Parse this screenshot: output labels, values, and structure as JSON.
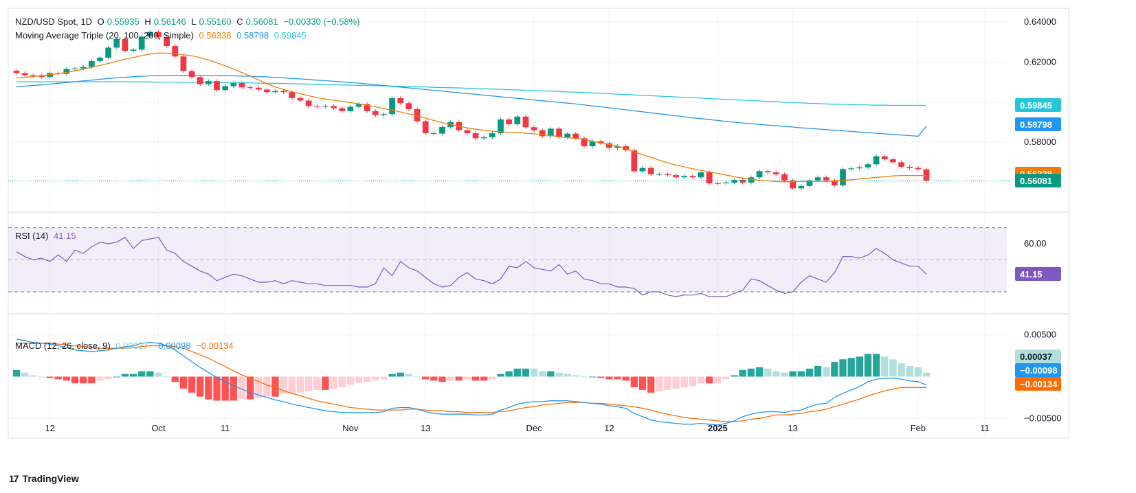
{
  "header": {
    "symbol": "NZD/USD Spot, 1D",
    "open_label": "O",
    "open": "0.55935",
    "high_label": "H",
    "high": "0.56146",
    "low_label": "L",
    "low": "0.55160",
    "close_label": "C",
    "close": "0.56081",
    "change": "−0.00330 (−0.58%)"
  },
  "ma_legend": {
    "label": "Moving Average Triple (20, 100, 200, Simple)",
    "ma20": "0.56338",
    "ma100": "0.58798",
    "ma200": "0.59845"
  },
  "rsi_legend": {
    "label": "RSI (14)",
    "value": "41.15"
  },
  "macd_legend": {
    "label": "MACD (12, 26, close, 9)",
    "hist": "0.00037",
    "macd": "−0.00098",
    "signal": "−0.00134"
  },
  "brand": {
    "name": "TradingView"
  },
  "colors": {
    "up": "#089981",
    "down": "#f23645",
    "ma20": "#f57c00",
    "ma100": "#2196f3",
    "ma200": "#26c6da",
    "rsi": "#7e57c2",
    "macd": "#2196f3",
    "signal": "#ff6d00",
    "hist_up_strong": "#26a69a",
    "hist_up_weak": "#b2dfdb",
    "hist_dn_strong": "#ff5252",
    "hist_dn_weak": "#ffcdd2"
  },
  "chart_data": {
    "type": "candlestick",
    "title": "NZD/USD Spot, 1D",
    "price_axis": {
      "ylim": [
        0.5465,
        0.6465
      ],
      "ticks": [
        0.64,
        0.62,
        0.58
      ],
      "tick_labels": [
        "0.64000",
        "0.62000",
        "0.58000"
      ]
    },
    "rsi_axis": {
      "ylim": [
        18,
        78
      ],
      "ticks": [
        60
      ],
      "tick_labels": [
        "60.00"
      ],
      "band": [
        30,
        70
      ],
      "midline": 50
    },
    "macd_axis": {
      "ylim": [
        -0.0072,
        0.0072
      ],
      "ticks": [
        0.005,
        -0.005
      ],
      "tick_labels": [
        "0.00500",
        "−0.00500"
      ]
    },
    "x_ticks": [
      {
        "label": "12",
        "index": 4,
        "bold": false
      },
      {
        "label": "Oct",
        "index": 17,
        "bold": false
      },
      {
        "label": "11",
        "index": 25,
        "bold": false
      },
      {
        "label": "Nov",
        "index": 40,
        "bold": false
      },
      {
        "label": "13",
        "index": 49,
        "bold": false
      },
      {
        "label": "Dec",
        "index": 62,
        "bold": false
      },
      {
        "label": "12",
        "index": 71,
        "bold": false
      },
      {
        "label": "2025",
        "index": 84,
        "bold": true
      },
      {
        "label": "13",
        "index": 93,
        "bold": false
      },
      {
        "label": "Feb",
        "index": 108,
        "bold": false
      },
      {
        "label": "11",
        "index": 116,
        "bold": false
      }
    ],
    "closes": [
      0.6145,
      0.6135,
      0.6131,
      0.6126,
      0.6145,
      0.6141,
      0.6166,
      0.6168,
      0.6176,
      0.6205,
      0.6222,
      0.6272,
      0.6315,
      0.6256,
      0.6262,
      0.6327,
      0.635,
      0.6325,
      0.628,
      0.6228,
      0.6155,
      0.6125,
      0.609,
      0.6105,
      0.606,
      0.608,
      0.6095,
      0.6074,
      0.6072,
      0.6063,
      0.605,
      0.6056,
      0.605,
      0.602,
      0.6008,
      0.598,
      0.5977,
      0.598,
      0.597,
      0.5955,
      0.5977,
      0.599,
      0.5955,
      0.5935,
      0.594,
      0.602,
      0.5995,
      0.5965,
      0.5905,
      0.5845,
      0.5843,
      0.5876,
      0.59,
      0.586,
      0.5845,
      0.582,
      0.5825,
      0.5845,
      0.5914,
      0.589,
      0.5928,
      0.5875,
      0.586,
      0.583,
      0.5868,
      0.5825,
      0.5843,
      0.582,
      0.578,
      0.5805,
      0.5795,
      0.5772,
      0.578,
      0.576,
      0.5655,
      0.5672,
      0.5641,
      0.5641,
      0.5636,
      0.5625,
      0.5632,
      0.5625,
      0.565,
      0.5595,
      0.5595,
      0.5599,
      0.5612,
      0.5599,
      0.5625,
      0.5656,
      0.565,
      0.564,
      0.561,
      0.557,
      0.5582,
      0.561,
      0.5625,
      0.561,
      0.5585,
      0.5666,
      0.567,
      0.5675,
      0.569,
      0.573,
      0.5715,
      0.57,
      0.5678,
      0.5672,
      0.5665,
      0.5608
    ],
    "ma20": [
      0.612,
      0.6124,
      0.6128,
      0.6132,
      0.6137,
      0.6142,
      0.6149,
      0.6156,
      0.6165,
      0.6174,
      0.6183,
      0.6193,
      0.6204,
      0.6214,
      0.6223,
      0.6232,
      0.624,
      0.6245,
      0.6244,
      0.6241,
      0.6236,
      0.6231,
      0.6222,
      0.621,
      0.6196,
      0.6181,
      0.6165,
      0.6148,
      0.613,
      0.6111,
      0.6092,
      0.6076,
      0.6063,
      0.6052,
      0.6042,
      0.6032,
      0.6023,
      0.6016,
      0.601,
      0.6003,
      0.5998,
      0.5992,
      0.5985,
      0.5977,
      0.5968,
      0.596,
      0.5951,
      0.5941,
      0.5931,
      0.592,
      0.5909,
      0.5898,
      0.5888,
      0.588,
      0.5872,
      0.5865,
      0.586,
      0.5855,
      0.5852,
      0.585,
      0.5848,
      0.5845,
      0.5842,
      0.5838,
      0.5834,
      0.5828,
      0.5823,
      0.5819,
      0.5814,
      0.5805,
      0.5797,
      0.5789,
      0.578,
      0.5768,
      0.5752,
      0.5738,
      0.5725,
      0.5711,
      0.5698,
      0.5687,
      0.5677,
      0.5668,
      0.566,
      0.5652,
      0.5645,
      0.5637,
      0.5628,
      0.5621,
      0.5615,
      0.561,
      0.5607,
      0.5604,
      0.5603,
      0.5603,
      0.5604,
      0.5605,
      0.5605,
      0.5604,
      0.5606,
      0.561,
      0.5613,
      0.5617,
      0.562,
      0.5625,
      0.5628,
      0.5632,
      0.5634,
      0.5634,
      0.5634,
      0.5634
    ],
    "ma100": [
      0.6077,
      0.608,
      0.6083,
      0.6086,
      0.609,
      0.6094,
      0.6098,
      0.6102,
      0.6106,
      0.611,
      0.6114,
      0.6118,
      0.6121,
      0.6124,
      0.6127,
      0.6129,
      0.6131,
      0.6132,
      0.6133,
      0.6134,
      0.6134,
      0.6133,
      0.6133,
      0.6133,
      0.6133,
      0.6132,
      0.6131,
      0.613,
      0.6129,
      0.6127,
      0.6126,
      0.6123,
      0.6121,
      0.6118,
      0.6116,
      0.6113,
      0.611,
      0.6107,
      0.6104,
      0.6101,
      0.6098,
      0.6095,
      0.6091,
      0.6087,
      0.6083,
      0.6079,
      0.6075,
      0.6071,
      0.6067,
      0.6063,
      0.6059,
      0.6055,
      0.6051,
      0.6047,
      0.6043,
      0.6039,
      0.6035,
      0.6031,
      0.6027,
      0.6023,
      0.6019,
      0.6015,
      0.6011,
      0.6007,
      0.6003,
      0.5999,
      0.5995,
      0.5991,
      0.5986,
      0.5981,
      0.5977,
      0.5972,
      0.5967,
      0.5962,
      0.5957,
      0.5952,
      0.5947,
      0.5942,
      0.5937,
      0.5932,
      0.5927,
      0.5922,
      0.5918,
      0.5913,
      0.5909,
      0.5904,
      0.59,
      0.5896,
      0.5893,
      0.5889,
      0.5886,
      0.5882,
      0.5879,
      0.5876,
      0.5872,
      0.5869,
      0.5866,
      0.5863,
      0.586,
      0.5857,
      0.5854,
      0.5851,
      0.5848,
      0.5845,
      0.5842,
      0.5839,
      0.5836,
      0.5833,
      0.583,
      0.588
    ],
    "ma200": [
      0.6102,
      0.6102,
      0.6102,
      0.6102,
      0.6102,
      0.6102,
      0.6102,
      0.6102,
      0.6102,
      0.6102,
      0.6102,
      0.6102,
      0.6102,
      0.6102,
      0.6101,
      0.6101,
      0.6101,
      0.61,
      0.61,
      0.61,
      0.6099,
      0.6099,
      0.6099,
      0.6098,
      0.6098,
      0.6097,
      0.6097,
      0.6096,
      0.6096,
      0.6095,
      0.6094,
      0.6094,
      0.6093,
      0.6092,
      0.6091,
      0.609,
      0.6089,
      0.6088,
      0.6087,
      0.6086,
      0.6085,
      0.6084,
      0.6083,
      0.6082,
      0.6081,
      0.608,
      0.6079,
      0.6078,
      0.6077,
      0.6076,
      0.6074,
      0.6073,
      0.6072,
      0.6071,
      0.6069,
      0.6068,
      0.6067,
      0.6065,
      0.6064,
      0.6062,
      0.6061,
      0.6059,
      0.6058,
      0.6056,
      0.6055,
      0.6053,
      0.6051,
      0.605,
      0.6048,
      0.6046,
      0.6044,
      0.6042,
      0.604,
      0.6038,
      0.6036,
      0.6034,
      0.6032,
      0.603,
      0.6028,
      0.6026,
      0.6024,
      0.6022,
      0.602,
      0.6018,
      0.6016,
      0.6014,
      0.6012,
      0.601,
      0.6008,
      0.6006,
      0.6004,
      0.6002,
      0.6,
      0.5998,
      0.5996,
      0.5994,
      0.5993,
      0.5991,
      0.599,
      0.5989,
      0.5988,
      0.5987,
      0.5986,
      0.5985,
      0.5985,
      0.5984,
      0.5984,
      0.5984,
      0.5984,
      0.5984
    ],
    "rsi": [
      55,
      52,
      50,
      51,
      49,
      53,
      49,
      56,
      54,
      58,
      61,
      60,
      61,
      64,
      57,
      62,
      63,
      64,
      56,
      54,
      49,
      46,
      43,
      41,
      37,
      39,
      41,
      40,
      38,
      36,
      36,
      37,
      35,
      37,
      36,
      35,
      35,
      34,
      34,
      34,
      34,
      33,
      33,
      35,
      45,
      40,
      49,
      45,
      43,
      39,
      35,
      33,
      34,
      39,
      42,
      38,
      37,
      35,
      38,
      46,
      45,
      49,
      45,
      44,
      43,
      47,
      41,
      43,
      38,
      37,
      35,
      35,
      33,
      33,
      32,
      28,
      30,
      30,
      28,
      27,
      28,
      28,
      29,
      27,
      27,
      27,
      29,
      31,
      38,
      37,
      34,
      31,
      29,
      30,
      36,
      40,
      38,
      36,
      42,
      52,
      52,
      51,
      53,
      57,
      54,
      50,
      48,
      46,
      46,
      41
    ],
    "macd": [
      0.0045,
      0.0043,
      0.0041,
      0.004,
      0.0039,
      0.0037,
      0.0035,
      0.0032,
      0.0031,
      0.003,
      0.0031,
      0.0032,
      0.0034,
      0.0036,
      0.0037,
      0.004,
      0.0041,
      0.004,
      0.0037,
      0.0032,
      0.0025,
      0.0018,
      0.0011,
      0.0005,
      -0.0001,
      -0.0006,
      -0.0011,
      -0.0015,
      -0.0019,
      -0.0022,
      -0.0025,
      -0.0028,
      -0.003,
      -0.0033,
      -0.0035,
      -0.0037,
      -0.0039,
      -0.0041,
      -0.0042,
      -0.0043,
      -0.0043,
      -0.0043,
      -0.0043,
      -0.0043,
      -0.0042,
      -0.0038,
      -0.0037,
      -0.0037,
      -0.0039,
      -0.0042,
      -0.0044,
      -0.0045,
      -0.0045,
      -0.0045,
      -0.0045,
      -0.0046,
      -0.0046,
      -0.0045,
      -0.004,
      -0.0037,
      -0.0033,
      -0.0031,
      -0.003,
      -0.003,
      -0.0029,
      -0.0029,
      -0.0029,
      -0.003,
      -0.0031,
      -0.0032,
      -0.0033,
      -0.0035,
      -0.0036,
      -0.0038,
      -0.0044,
      -0.0048,
      -0.0052,
      -0.0054,
      -0.0055,
      -0.0056,
      -0.0057,
      -0.0057,
      -0.0056,
      -0.0057,
      -0.0058,
      -0.0056,
      -0.0053,
      -0.0048,
      -0.0045,
      -0.0043,
      -0.0042,
      -0.0042,
      -0.0043,
      -0.0041,
      -0.004,
      -0.0036,
      -0.0033,
      -0.0032,
      -0.0025,
      -0.002,
      -0.0016,
      -0.0012,
      -0.0006,
      -0.0003,
      -0.0002,
      -0.0002,
      -0.0003,
      -0.0005,
      -0.0006,
      -0.001
    ],
    "signal": [
      0.004,
      0.004,
      0.004,
      0.004,
      0.004,
      0.0039,
      0.0038,
      0.0037,
      0.0036,
      0.0035,
      0.0034,
      0.0034,
      0.0034,
      0.0034,
      0.0035,
      0.0036,
      0.0037,
      0.0037,
      0.0037,
      0.0036,
      0.0034,
      0.003,
      0.0026,
      0.0022,
      0.0017,
      0.0012,
      0.0007,
      0.0002,
      -0.0002,
      -0.0006,
      -0.001,
      -0.0013,
      -0.0017,
      -0.002,
      -0.0023,
      -0.0026,
      -0.0029,
      -0.0031,
      -0.0033,
      -0.0035,
      -0.0037,
      -0.0038,
      -0.0039,
      -0.004,
      -0.004,
      -0.004,
      -0.004,
      -0.0039,
      -0.0039,
      -0.004,
      -0.0041,
      -0.0041,
      -0.0042,
      -0.0042,
      -0.0043,
      -0.0043,
      -0.0043,
      -0.0043,
      -0.0042,
      -0.0041,
      -0.0039,
      -0.0037,
      -0.0036,
      -0.0034,
      -0.0033,
      -0.0032,
      -0.0031,
      -0.0031,
      -0.0031,
      -0.0032,
      -0.0032,
      -0.0033,
      -0.0034,
      -0.0035,
      -0.0036,
      -0.0038,
      -0.004,
      -0.0043,
      -0.0045,
      -0.0047,
      -0.0049,
      -0.005,
      -0.0051,
      -0.0052,
      -0.0053,
      -0.0054,
      -0.0054,
      -0.0053,
      -0.0051,
      -0.005,
      -0.0048,
      -0.0046,
      -0.0046,
      -0.0045,
      -0.0044,
      -0.0042,
      -0.0041,
      -0.0039,
      -0.0036,
      -0.0033,
      -0.003,
      -0.0027,
      -0.0023,
      -0.002,
      -0.0017,
      -0.0015,
      -0.0013,
      -0.0013,
      -0.0013,
      -0.0013
    ],
    "last_values": {
      "close": "0.56081",
      "ma20": "0.56338",
      "ma100": "0.58798",
      "ma200": "0.59845",
      "rsi": "41.15",
      "hist": "0.00037",
      "macd": "−0.00098",
      "signal": "−0.00134"
    }
  }
}
